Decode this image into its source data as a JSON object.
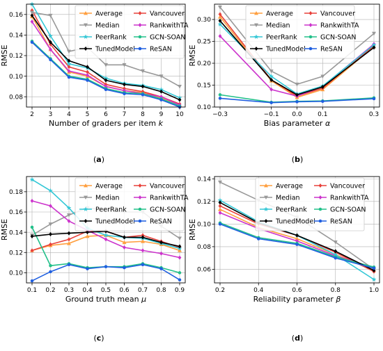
{
  "chart_data": [
    {
      "type": "line",
      "panel_label": "(a)",
      "xlabel": "Number of graders per item k",
      "xlabel_italic": "k",
      "ylabel": "RMSE",
      "xlim": [
        2,
        10
      ],
      "ylim": [
        0.07,
        0.17
      ],
      "xticks": [
        2,
        3,
        4,
        5,
        6,
        7,
        8,
        9,
        10
      ],
      "xtick_labels": [
        "2",
        "3",
        "4",
        "5",
        "6",
        "7",
        "8",
        "9",
        "10"
      ],
      "yticks": [
        0.08,
        0.1,
        0.12,
        0.14,
        0.16
      ],
      "ytick_labels": [
        "0.08",
        "0.10",
        "0.12",
        "0.14",
        "0.16"
      ],
      "legend": "top-right",
      "x": [
        2,
        3,
        4,
        5,
        6,
        7,
        8,
        9,
        10
      ],
      "series": [
        {
          "name": "Average",
          "color": "#ff9f3f",
          "marker": "triangle-up",
          "values": [
            0.158,
            0.126,
            0.104,
            0.1,
            0.09,
            0.086,
            0.084,
            0.079,
            0.072
          ]
        },
        {
          "name": "Vancouver",
          "color": "#e8403a",
          "marker": "diamond",
          "values": [
            0.164,
            0.131,
            0.109,
            0.104,
            0.092,
            0.088,
            0.085,
            0.08,
            0.073
          ]
        },
        {
          "name": "Median",
          "color": "#999999",
          "marker": "triangle-down",
          "values": [
            0.162,
            0.159,
            0.124,
            0.128,
            0.111,
            0.111,
            0.105,
            0.1,
            0.09
          ]
        },
        {
          "name": "RankwithTA",
          "color": "#cc33cc",
          "marker": "diamond",
          "values": [
            0.153,
            0.126,
            0.105,
            0.101,
            0.09,
            0.086,
            0.083,
            0.08,
            0.072
          ]
        },
        {
          "name": "PeerRank",
          "color": "#33c7d6",
          "marker": "star",
          "values": [
            0.17,
            0.139,
            0.112,
            0.108,
            0.098,
            0.093,
            0.091,
            0.087,
            0.079
          ]
        },
        {
          "name": "GCN-SOAN",
          "color": "#22c08a",
          "marker": "circle",
          "values": [
            0.134,
            0.117,
            0.1,
            0.097,
            0.088,
            0.084,
            0.083,
            0.078,
            0.071
          ]
        },
        {
          "name": "TunedModel",
          "color": "#000000",
          "marker": "diamond",
          "values": [
            0.159,
            0.133,
            0.115,
            0.109,
            0.096,
            0.092,
            0.09,
            0.085,
            0.077
          ]
        },
        {
          "name": "ReSAN",
          "color": "#1f5fe0",
          "marker": "circle",
          "values": [
            0.133,
            0.116,
            0.099,
            0.096,
            0.087,
            0.083,
            0.082,
            0.077,
            0.07
          ]
        }
      ]
    },
    {
      "type": "line",
      "panel_label": "(b)",
      "xlabel": "Bias parameter α",
      "xlabel_italic": "α",
      "ylabel": "RMSE",
      "xlim": [
        -0.3,
        0.3
      ],
      "ylim": [
        0.1,
        0.335
      ],
      "xticks": [
        -0.3,
        -0.1,
        0.0,
        0.1,
        0.3
      ],
      "xtick_labels": [
        "−0.3",
        "−0.1",
        "0.0",
        "0.1",
        "0.3"
      ],
      "yticks": [
        0.1,
        0.15,
        0.2,
        0.25,
        0.3
      ],
      "ytick_labels": [
        "0.10",
        "0.15",
        "0.20",
        "0.25",
        "0.30"
      ],
      "legend": "top-center",
      "x": [
        -0.3,
        -0.1,
        0.0,
        0.1,
        0.3
      ],
      "series": [
        {
          "name": "Average",
          "color": "#ff9f3f",
          "marker": "triangle-up",
          "values": [
            0.306,
            0.16,
            0.122,
            0.14,
            0.238
          ]
        },
        {
          "name": "Vancouver",
          "color": "#e8403a",
          "marker": "diamond",
          "values": [
            0.312,
            0.162,
            0.125,
            0.143,
            0.24
          ]
        },
        {
          "name": "Median",
          "color": "#999999",
          "marker": "triangle-down",
          "values": [
            0.328,
            0.182,
            0.152,
            0.17,
            0.268
          ]
        },
        {
          "name": "RankwithTA",
          "color": "#cc33cc",
          "marker": "diamond",
          "values": [
            0.262,
            0.14,
            0.125,
            0.147,
            0.244
          ]
        },
        {
          "name": "PeerRank",
          "color": "#33c7d6",
          "marker": "star",
          "values": [
            0.289,
            0.17,
            0.13,
            0.148,
            0.242
          ]
        },
        {
          "name": "GCN-SOAN",
          "color": "#22c08a",
          "marker": "circle",
          "values": [
            0.128,
            0.111,
            0.113,
            0.114,
            0.121
          ]
        },
        {
          "name": "TunedModel",
          "color": "#000000",
          "marker": "diamond",
          "values": [
            0.297,
            0.162,
            0.128,
            0.146,
            0.236
          ]
        },
        {
          "name": "ReSAN",
          "color": "#1f5fe0",
          "marker": "circle",
          "values": [
            0.12,
            0.11,
            0.112,
            0.113,
            0.119
          ]
        }
      ]
    },
    {
      "type": "line",
      "panel_label": "(c)",
      "xlabel": "Ground truth mean μ",
      "xlabel_italic": "μ",
      "ylabel": "RMSE",
      "xlim": [
        0.1,
        0.9
      ],
      "ylim": [
        0.09,
        0.195
      ],
      "xticks": [
        0.1,
        0.2,
        0.3,
        0.4,
        0.5,
        0.6,
        0.7,
        0.8,
        0.9
      ],
      "xtick_labels": [
        "0.1",
        "0.2",
        "0.3",
        "0.4",
        "0.5",
        "0.6",
        "0.7",
        "0.8",
        "0.9"
      ],
      "yticks": [
        0.1,
        0.12,
        0.14,
        0.16,
        0.18
      ],
      "ytick_labels": [
        "0.10",
        "0.12",
        "0.14",
        "0.16",
        "0.18"
      ],
      "legend": "top-center",
      "x": [
        0.1,
        0.2,
        0.3,
        0.4,
        0.5,
        0.6,
        0.7,
        0.8,
        0.9
      ],
      "series": [
        {
          "name": "Average",
          "color": "#ff9f3f",
          "marker": "triangle-up",
          "values": [
            0.122,
            0.127,
            0.129,
            0.136,
            0.137,
            0.13,
            0.131,
            0.128,
            0.122
          ]
        },
        {
          "name": "Vancouver",
          "color": "#e8403a",
          "marker": "diamond",
          "values": [
            0.122,
            0.128,
            0.133,
            0.141,
            0.141,
            0.135,
            0.137,
            0.131,
            0.125
          ]
        },
        {
          "name": "Median",
          "color": "#999999",
          "marker": "triangle-down",
          "values": [
            0.137,
            0.148,
            0.157,
            0.164,
            0.162,
            0.16,
            0.16,
            0.146,
            0.134
          ]
        },
        {
          "name": "RankwithTA",
          "color": "#cc33cc",
          "marker": "diamond",
          "values": [
            0.171,
            0.166,
            0.151,
            0.142,
            0.133,
            0.125,
            0.122,
            0.119,
            0.115
          ]
        },
        {
          "name": "PeerRank",
          "color": "#33c7d6",
          "marker": "star",
          "values": [
            0.192,
            0.181,
            0.164,
            0.144,
            0.137,
            0.135,
            0.134,
            0.129,
            0.124
          ]
        },
        {
          "name": "GCN-SOAN",
          "color": "#22c08a",
          "marker": "circle",
          "values": [
            0.145,
            0.107,
            0.109,
            0.105,
            0.106,
            0.106,
            0.109,
            0.105,
            0.1
          ]
        },
        {
          "name": "TunedModel",
          "color": "#000000",
          "marker": "diamond",
          "values": [
            0.136,
            0.138,
            0.139,
            0.14,
            0.141,
            0.135,
            0.135,
            0.13,
            0.126
          ]
        },
        {
          "name": "ReSAN",
          "color": "#1f5fe0",
          "marker": "circle",
          "values": [
            0.092,
            0.101,
            0.108,
            0.104,
            0.106,
            0.105,
            0.108,
            0.104,
            0.093
          ]
        }
      ]
    },
    {
      "type": "line",
      "panel_label": "(d)",
      "xlabel": "Reliability parameter β",
      "xlabel_italic": "β",
      "ylabel": "RMSE",
      "xlim": [
        0.2,
        1.0
      ],
      "ylim": [
        0.048,
        0.142
      ],
      "xticks": [
        0.2,
        0.4,
        0.6,
        0.8,
        1.0
      ],
      "xtick_labels": [
        "0.2",
        "0.4",
        "0.6",
        "0.8",
        "1.0"
      ],
      "yticks": [
        0.06,
        0.08,
        0.1,
        0.12,
        0.14
      ],
      "ytick_labels": [
        "0.06",
        "0.08",
        "0.10",
        "0.12",
        "0.14"
      ],
      "legend": "top-right",
      "x": [
        0.2,
        0.4,
        0.6,
        0.8,
        1.0
      ],
      "series": [
        {
          "name": "Average",
          "color": "#ff9f3f",
          "marker": "triangle-up",
          "values": [
            0.113,
            0.097,
            0.087,
            0.073,
            0.059
          ]
        },
        {
          "name": "Vancouver",
          "color": "#e8403a",
          "marker": "diamond",
          "values": [
            0.116,
            0.1,
            0.09,
            0.075,
            0.058
          ]
        },
        {
          "name": "Median",
          "color": "#999999",
          "marker": "triangle-down",
          "values": [
            0.137,
            0.121,
            0.106,
            0.084,
            0.06
          ]
        },
        {
          "name": "RankwithTA",
          "color": "#cc33cc",
          "marker": "diamond",
          "values": [
            0.11,
            0.096,
            0.085,
            0.072,
            0.061
          ]
        },
        {
          "name": "PeerRank",
          "color": "#33c7d6",
          "marker": "star",
          "values": [
            0.121,
            0.102,
            0.09,
            0.073,
            0.051
          ]
        },
        {
          "name": "GCN-SOAN",
          "color": "#22c08a",
          "marker": "circle",
          "values": [
            0.101,
            0.088,
            0.083,
            0.071,
            0.062
          ]
        },
        {
          "name": "TunedModel",
          "color": "#000000",
          "marker": "diamond",
          "values": [
            0.119,
            0.101,
            0.09,
            0.076,
            0.059
          ]
        },
        {
          "name": "ReSAN",
          "color": "#1f5fe0",
          "marker": "circle",
          "values": [
            0.1,
            0.087,
            0.082,
            0.07,
            0.061
          ]
        }
      ]
    }
  ]
}
